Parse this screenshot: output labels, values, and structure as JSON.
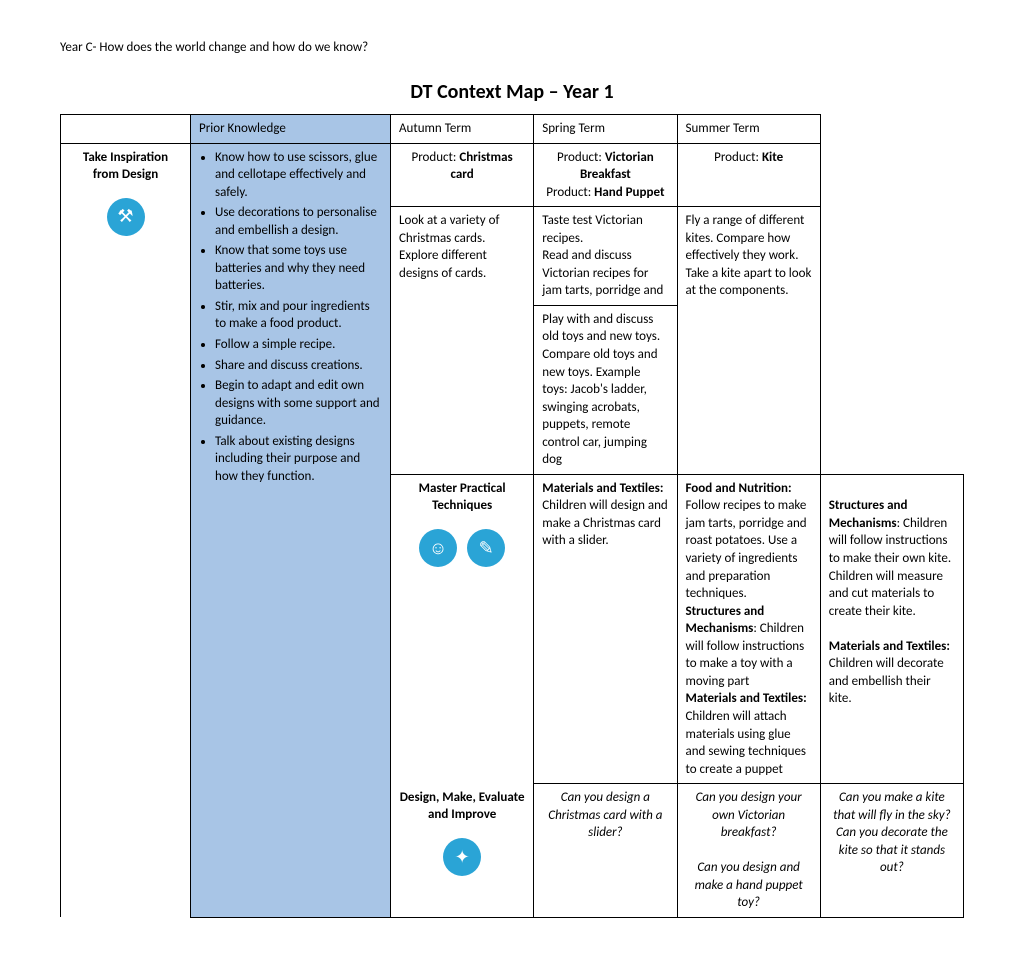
{
  "header": "Year C- How does the world change and how do we know?",
  "title": "DT Context Map – Year 1",
  "columns": {
    "prior": "Prior Knowledge",
    "autumn": "Autumn Term",
    "spring": "Spring Term",
    "summer": "Summer Term"
  },
  "products": {
    "autumn_prefix": "Product: ",
    "autumn_bold": "Christmas card",
    "spring_line1_prefix": "Product: ",
    "spring_line1_bold": "Victorian Breakfast",
    "spring_line2_prefix": "Product: ",
    "spring_line2_bold": "Hand Puppet",
    "summer_prefix": "Product: ",
    "summer_bold": "Kite"
  },
  "rows": {
    "take_inspiration": "Take Inspiration from Design",
    "master_practical": "Master Practical Techniques",
    "design_make": "Design, Make, Evaluate and Improve"
  },
  "prior_bullets": [
    "Know how to use scissors, glue and cellotape effectively and safely.",
    "Use decorations to personalise and embellish a design.",
    "Know that some toys use batteries and why they need batteries.",
    "Stir, mix and pour ingredients to make a food product.",
    "Follow a simple recipe.",
    "Share and discuss creations.",
    "Begin to adapt and edit own designs with some support and guidance.",
    "Talk about existing designs including their purpose and how they function."
  ],
  "take": {
    "autumn": "Look at a variety of Christmas cards. Explore different designs of cards.",
    "spring_a": "Taste test Victorian recipes.\nRead and discuss Victorian recipes for jam tarts, porridge and",
    "spring_b": "Play with and discuss old toys and new toys.\nCompare old toys and new toys. Example toys: Jacob's ladder, swinging acrobats, puppets, remote control car, jumping dog",
    "summer": "Fly a range of different kites. Compare how effectively they work. Take a kite apart to look at the components."
  },
  "master": {
    "autumn_b1": "Materials and Textiles:",
    "autumn_t1": " Children will design and make a Christmas card with a slider.",
    "spring_b1": "Food and Nutrition:",
    "spring_t1": " Follow recipes to make jam tarts, porridge and roast potatoes. Use a variety of ingredients and preparation techniques.",
    "spring_b2": "Structures and Mechanisms",
    "spring_t2": ": Children will follow instructions to make a toy with a moving part",
    "spring_b3": "Materials and Textiles:",
    "spring_t3": " Children will attach materials using glue and sewing techniques to create a puppet",
    "summer_b1": "Structures and Mechanisms",
    "summer_t1": ": Children will follow instructions to make their own kite.\nChildren will measure and cut materials to create their kite.",
    "summer_b2": "Materials and Textiles:",
    "summer_t2": " Children will decorate and embellish their kite."
  },
  "design": {
    "autumn": "Can you design a Christmas card with a slider?",
    "spring_a": "Can you design your own Victorian breakfast?",
    "spring_b": "Can you design and make a hand puppet toy?",
    "summer_a": "Can you make a kite that will fly in the sky?",
    "summer_b": "Can you decorate the kite so that it stands out?"
  },
  "icons": {
    "compass": "⚒",
    "head": "☺",
    "person": "✎",
    "paint": "✦"
  }
}
